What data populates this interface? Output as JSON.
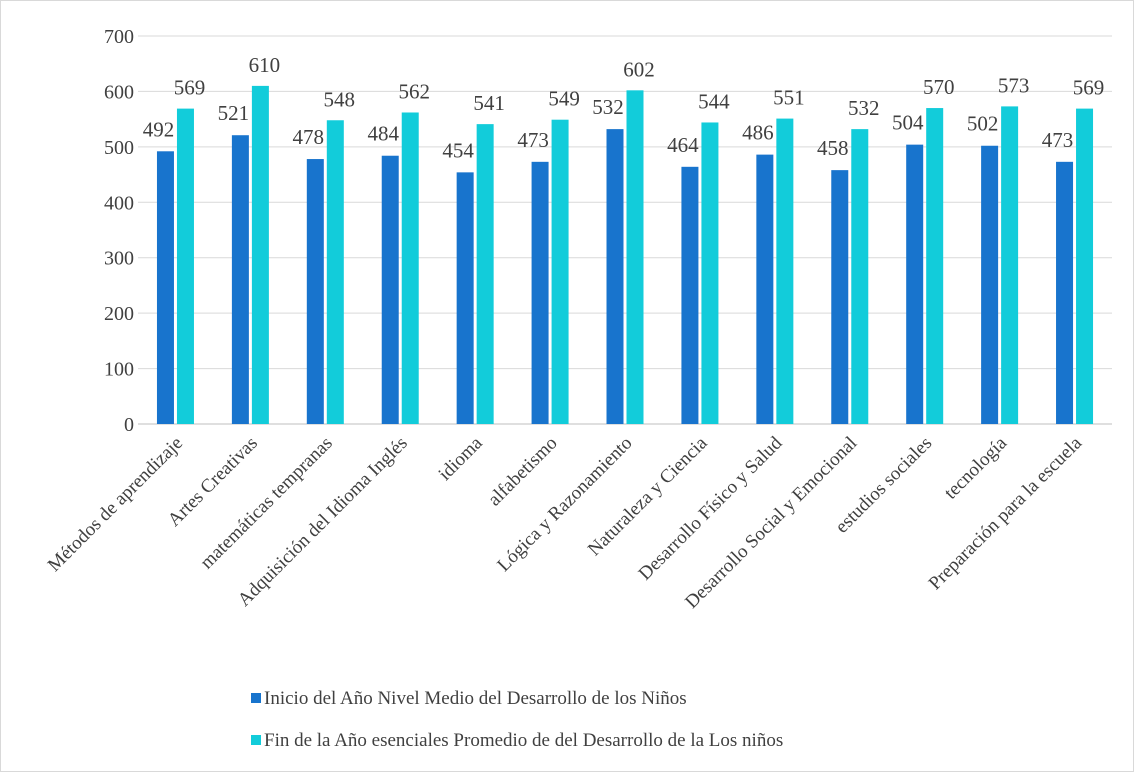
{
  "chart_data": {
    "type": "bar",
    "title": "",
    "xlabel": "",
    "ylabel": "",
    "ylim": [
      0,
      700
    ],
    "yticks": [
      0,
      100,
      200,
      300,
      400,
      500,
      600,
      700
    ],
    "grid": true,
    "legend_position": "bottom",
    "categories": [
      "Métodos de aprendizaje",
      "Artes Creativas",
      "matemáticas tempranas",
      "Adquisición del Idioma Inglés",
      "idioma",
      "alfabetismo",
      "Lógica y Razonamiento",
      "Naturaleza y Ciencia",
      "Desarrollo Físico y Salud",
      "Desarrollo Social y Emocional",
      "estudios sociales",
      "tecnología",
      "Preparación para la escuela"
    ],
    "series": [
      {
        "name": "Inicio del Año Nivel Medio del Desarrollo de los Niños",
        "color": "#1874CD",
        "values": [
          492,
          521,
          478,
          484,
          454,
          473,
          532,
          464,
          486,
          458,
          504,
          502,
          473
        ]
      },
      {
        "name": "Fin de la Año esenciales Promedio de del Desarrollo de la Los niños",
        "color": "#12CCDA",
        "values": [
          569,
          610,
          548,
          562,
          541,
          549,
          602,
          544,
          551,
          532,
          570,
          573,
          569
        ]
      }
    ]
  }
}
